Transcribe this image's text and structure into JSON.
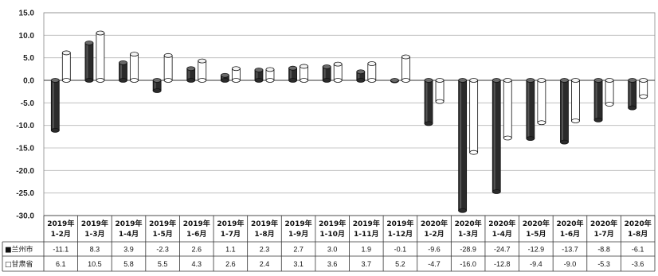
{
  "chart_data": {
    "type": "bar",
    "title": "",
    "xlabel": "",
    "ylabel": "",
    "ylim": [
      -30,
      15
    ],
    "yticks": [
      "15.0",
      "10.0",
      "5.0",
      "0.0",
      "-5.0",
      "-10.0",
      "-15.0",
      "-20.0",
      "-25.0",
      "-30.0"
    ],
    "grid": "horizontal",
    "legend": "data-table-left",
    "categories": [
      [
        "2019年",
        "1-2月"
      ],
      [
        "2019年",
        "1-3月"
      ],
      [
        "2019年",
        "1-4月"
      ],
      [
        "2019年",
        "1-5月"
      ],
      [
        "2019年",
        "1-6月"
      ],
      [
        "2019年",
        "1-7月"
      ],
      [
        "2019年",
        "1-8月"
      ],
      [
        "2019年",
        "1-9月"
      ],
      [
        "2019年",
        "1-10月"
      ],
      [
        "2019年",
        "1-11月"
      ],
      [
        "2019年",
        "1-12月"
      ],
      [
        "2020年",
        "1-2月"
      ],
      [
        "2020年",
        "1-3月"
      ],
      [
        "2020年",
        "1-4月"
      ],
      [
        "2020年",
        "1-5月"
      ],
      [
        "2020年",
        "1-6月"
      ],
      [
        "2020年",
        "1-7月"
      ],
      [
        "2020年",
        "1-8月"
      ]
    ],
    "series": [
      {
        "name": "兰州市",
        "legend_symbol": "■",
        "color": "#2b2b2b",
        "values": [
          -11.1,
          8.3,
          3.9,
          -2.3,
          2.6,
          1.1,
          2.3,
          2.7,
          3.0,
          1.9,
          -0.1,
          -9.6,
          -28.9,
          -24.7,
          -12.9,
          -13.7,
          -8.8,
          -6.1
        ],
        "labels": [
          "-11.1",
          "8.3",
          "3.9",
          "-2.3",
          "2.6",
          "1.1",
          "2.3",
          "2.7",
          "3.0",
          "1.9",
          "-0.1",
          "-9.6",
          "-28.9",
          "-24.7",
          "-12.9",
          "-13.7",
          "-8.8",
          "-6.1"
        ]
      },
      {
        "name": "甘肃省",
        "legend_symbol": "□",
        "color": "#ffffff",
        "values": [
          6.1,
          10.5,
          5.8,
          5.5,
          4.3,
          2.6,
          2.4,
          3.1,
          3.6,
          3.7,
          5.2,
          -4.7,
          -16.0,
          -12.8,
          -9.4,
          -9.0,
          -5.3,
          -3.6
        ],
        "labels": [
          "6.1",
          "10.5",
          "5.8",
          "5.5",
          "4.3",
          "2.6",
          "2.4",
          "3.1",
          "3.6",
          "3.7",
          "5.2",
          "-4.7",
          "-16.0",
          "-12.8",
          "-9.4",
          "-9.0",
          "-5.3",
          "-3.6"
        ]
      }
    ]
  }
}
